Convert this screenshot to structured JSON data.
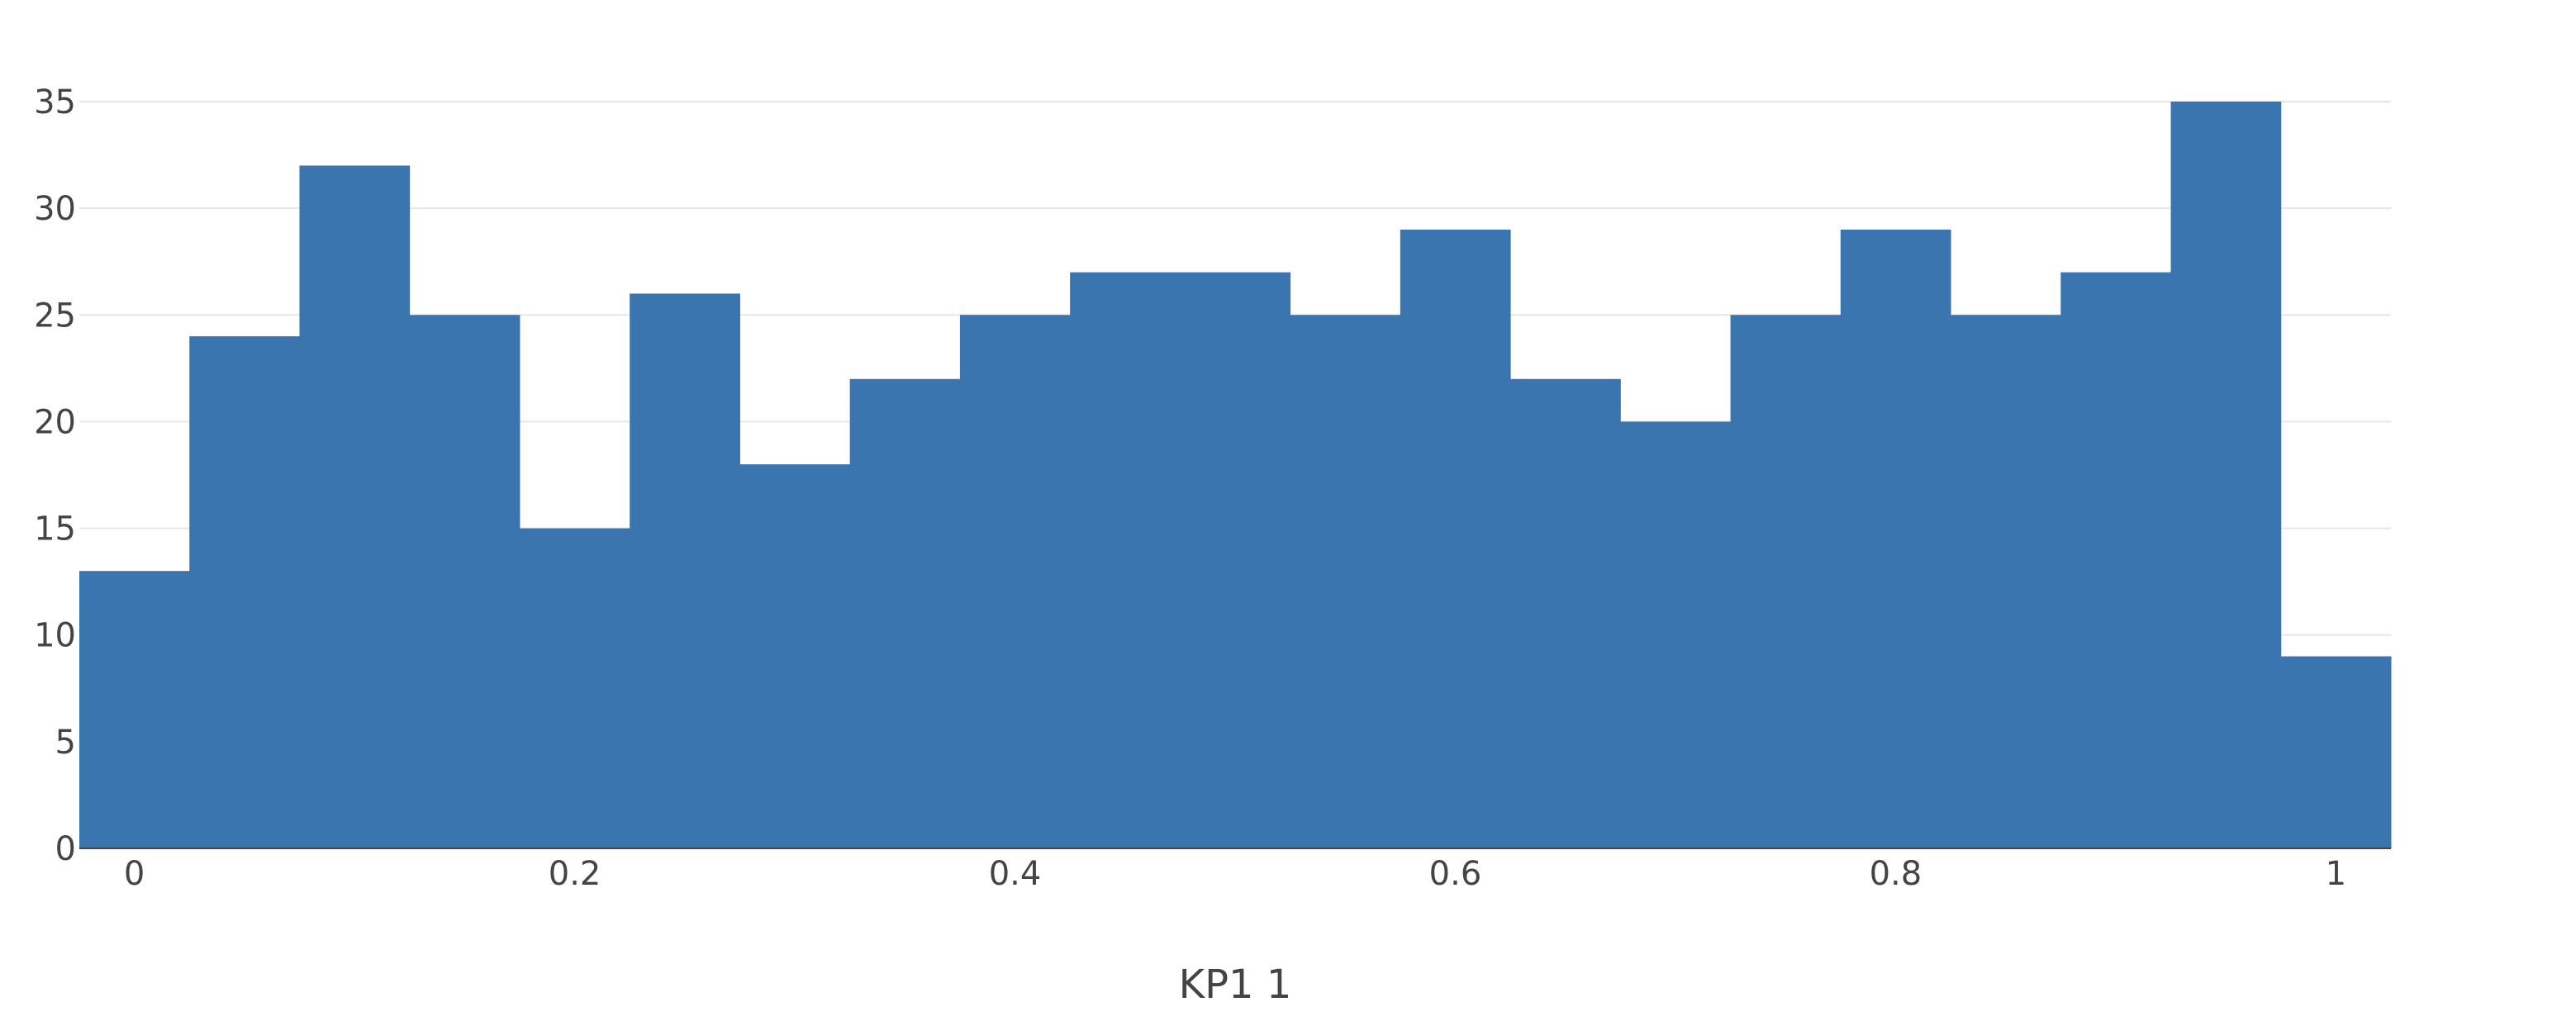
{
  "chart_data": {
    "type": "bar",
    "xlabel": "KP1 1",
    "ylabel": "",
    "bin_width": 0.05,
    "bin_start": -0.025,
    "bins": [
      {
        "x0": -0.025,
        "x1": 0.025,
        "count": 13
      },
      {
        "x0": 0.025,
        "x1": 0.075,
        "count": 24
      },
      {
        "x0": 0.075,
        "x1": 0.125,
        "count": 32
      },
      {
        "x0": 0.125,
        "x1": 0.175,
        "count": 25
      },
      {
        "x0": 0.175,
        "x1": 0.225,
        "count": 15
      },
      {
        "x0": 0.225,
        "x1": 0.275,
        "count": 26
      },
      {
        "x0": 0.275,
        "x1": 0.325,
        "count": 18
      },
      {
        "x0": 0.325,
        "x1": 0.375,
        "count": 22
      },
      {
        "x0": 0.375,
        "x1": 0.425,
        "count": 25
      },
      {
        "x0": 0.425,
        "x1": 0.475,
        "count": 27
      },
      {
        "x0": 0.475,
        "x1": 0.525,
        "count": 27
      },
      {
        "x0": 0.525,
        "x1": 0.575,
        "count": 25
      },
      {
        "x0": 0.575,
        "x1": 0.625,
        "count": 29
      },
      {
        "x0": 0.625,
        "x1": 0.675,
        "count": 22
      },
      {
        "x0": 0.675,
        "x1": 0.725,
        "count": 20
      },
      {
        "x0": 0.725,
        "x1": 0.775,
        "count": 25
      },
      {
        "x0": 0.775,
        "x1": 0.825,
        "count": 29
      },
      {
        "x0": 0.825,
        "x1": 0.875,
        "count": 25
      },
      {
        "x0": 0.875,
        "x1": 0.925,
        "count": 27
      },
      {
        "x0": 0.925,
        "x1": 0.975,
        "count": 35
      },
      {
        "x0": 0.975,
        "x1": 1.025,
        "count": 9
      }
    ],
    "xlim": [
      -0.025,
      1.025
    ],
    "ylim": [
      0,
      37
    ],
    "x_ticks": [
      {
        "value": 0,
        "label": "0"
      },
      {
        "value": 0.2,
        "label": "0.2"
      },
      {
        "value": 0.4,
        "label": "0.4"
      },
      {
        "value": 0.6,
        "label": "0.6"
      },
      {
        "value": 0.8,
        "label": "0.8"
      },
      {
        "value": 1,
        "label": "1"
      }
    ],
    "y_ticks": [
      {
        "value": 0,
        "label": "0"
      },
      {
        "value": 5,
        "label": "5"
      },
      {
        "value": 10,
        "label": "10"
      },
      {
        "value": 15,
        "label": "15"
      },
      {
        "value": 20,
        "label": "20"
      },
      {
        "value": 25,
        "label": "25"
      },
      {
        "value": 30,
        "label": "30"
      },
      {
        "value": 35,
        "label": "35"
      }
    ],
    "grid": true,
    "legend": "none",
    "colors": {
      "bar": "#3a75af",
      "grid": "#e6e6e6",
      "text": "#444444"
    }
  }
}
